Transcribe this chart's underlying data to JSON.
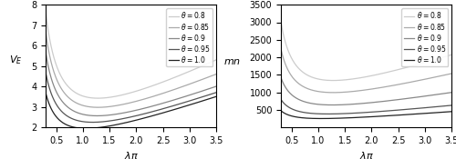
{
  "thetas": [
    0.8,
    0.85,
    0.9,
    0.95,
    1.0
  ],
  "lam_min": 0.3,
  "lam_max": 3.5,
  "lam_npts": 500,
  "alpha": 0.05,
  "beta": 0.2,
  "delta": 0.7,
  "ylabel_left": "$V_E$",
  "ylabel_right": "$mn$",
  "xlabel": "$\\lambda\\pi$",
  "ylim_left": [
    2,
    8
  ],
  "ylim_right": [
    0,
    3500
  ],
  "yticks_left": [
    2,
    3,
    4,
    5,
    6,
    7,
    8
  ],
  "yticks_right": [
    500,
    1000,
    1500,
    2000,
    2500,
    3000,
    3500
  ],
  "xticks": [
    0.5,
    1.0,
    1.5,
    2.0,
    2.5,
    3.0,
    3.5
  ],
  "colors": [
    "#cccccc",
    "#aaaaaa",
    "#888888",
    "#555555",
    "#222222"
  ],
  "legend_labels": [
    "$\\theta = 0.8$",
    "$\\theta = 0.85$",
    "$\\theta = 0.9$",
    "$\\theta = 0.95$",
    "$\\theta = 1.0$"
  ],
  "figsize": [
    5.0,
    1.75
  ],
  "dpi": 100
}
